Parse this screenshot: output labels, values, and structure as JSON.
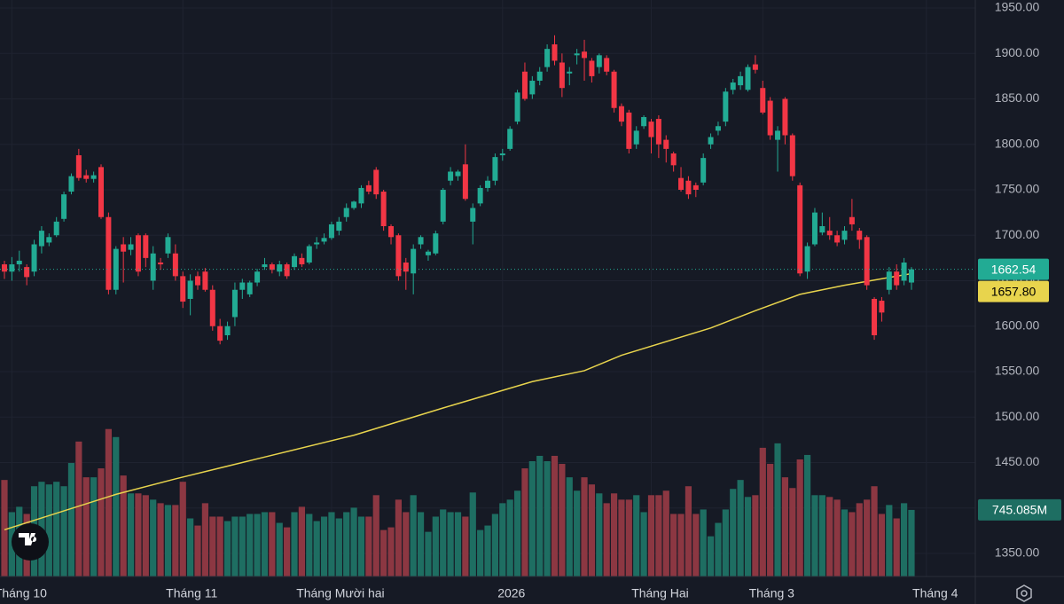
{
  "chart_data": {
    "type": "candlestick",
    "categories": [
      null,
      "Tháng 10",
      null,
      null,
      null,
      null,
      null,
      null,
      null,
      null,
      null,
      null,
      null,
      null,
      null,
      null,
      null,
      null,
      null,
      null,
      null,
      null,
      null,
      null,
      "Tháng 11",
      null,
      null,
      null,
      null,
      null,
      null,
      null,
      null,
      null,
      null,
      null,
      null,
      null,
      null,
      null,
      null,
      null,
      null,
      null,
      "Tháng Mười hai",
      null,
      null,
      null,
      null,
      null,
      null,
      null,
      null,
      null,
      null,
      null,
      null,
      null,
      null,
      null,
      null,
      null,
      null,
      null,
      null,
      null,
      null,
      "2026",
      null,
      null,
      null,
      null,
      null,
      null,
      null,
      null,
      null,
      null,
      null,
      null,
      null,
      null,
      null,
      null,
      null,
      null,
      null,
      "Tháng Hai",
      null,
      null,
      null,
      null,
      null,
      null,
      null,
      null,
      null,
      null,
      null,
      null,
      null,
      null,
      "Tháng 3",
      null,
      null,
      null,
      null,
      null,
      null,
      null,
      null,
      null,
      null,
      null,
      null,
      null,
      null,
      null,
      null,
      null,
      null,
      null,
      null,
      null,
      "Tháng 4"
    ],
    "open": [
      1668,
      1660,
      1668,
      1665,
      1660,
      1688,
      1692,
      1700,
      1718,
      1748,
      1788,
      1766,
      1762,
      1775,
      1720,
      1640,
      1690,
      1684,
      1700,
      1700,
      1650,
      1670,
      1680,
      1680,
      1655,
      1630,
      1655,
      1660,
      1640,
      1600,
      1590,
      1610,
      1640,
      1635,
      1648,
      1665,
      1668,
      1660,
      1668,
      1665,
      1675,
      1670,
      1690,
      1693,
      1697,
      1705,
      1720,
      1730,
      1735,
      1755,
      1772,
      1748,
      1710,
      1700,
      1670,
      1658,
      1690,
      1678,
      1680,
      1715,
      1760,
      1765,
      1778,
      1715,
      1735,
      1752,
      1760,
      1788,
      1795,
      1825,
      1880,
      1855,
      1870,
      1885,
      1910,
      1890,
      1878,
      1898,
      1902,
      1892,
      1885,
      1895,
      1880,
      1842,
      1835,
      1800,
      1820,
      1825,
      1828,
      1805,
      1790,
      1763,
      1760,
      1755,
      1758,
      1800,
      1815,
      1825,
      1860,
      1865,
      1860,
      1888,
      1862,
      1848,
      1805,
      1850,
      1810,
      1755,
      1660,
      1690,
      1703,
      1705,
      1700,
      1695,
      1720,
      1705,
      1698,
      1630,
      1628,
      1640,
      1660,
      1650,
      1648,
      null,
      null
    ],
    "high": [
      1672,
      1676,
      1683,
      1668,
      1695,
      1710,
      1702,
      1720,
      1748,
      1768,
      1795,
      1772,
      1770,
      1778,
      1725,
      1688,
      1698,
      1698,
      1702,
      1702,
      1688,
      1675,
      1702,
      1690,
      1660,
      1657,
      1660,
      1664,
      1645,
      1608,
      1605,
      1648,
      1652,
      1650,
      1663,
      1675,
      1670,
      1672,
      1670,
      1680,
      1680,
      1690,
      1698,
      1702,
      1715,
      1720,
      1735,
      1738,
      1755,
      1760,
      1775,
      1750,
      1712,
      1702,
      1675,
      1690,
      1700,
      1684,
      1705,
      1752,
      1775,
      1772,
      1800,
      1735,
      1755,
      1765,
      1790,
      1795,
      1820,
      1860,
      1890,
      1875,
      1885,
      1910,
      1920,
      1900,
      1885,
      1905,
      1915,
      1895,
      1900,
      1898,
      1882,
      1845,
      1838,
      1820,
      1832,
      1828,
      1832,
      1810,
      1792,
      1775,
      1765,
      1758,
      1790,
      1812,
      1825,
      1862,
      1872,
      1880,
      1888,
      1898,
      1870,
      1852,
      1820,
      1852,
      1812,
      1758,
      1692,
      1730,
      1725,
      1720,
      1705,
      1710,
      1740,
      1708,
      1700,
      1632,
      1632,
      1665,
      1668,
      1675,
      1665,
      null,
      null
    ],
    "low": [
      1652,
      1650,
      1660,
      1645,
      1655,
      1680,
      1688,
      1698,
      1715,
      1745,
      1760,
      1758,
      1758,
      1718,
      1635,
      1635,
      1648,
      1678,
      1655,
      1665,
      1640,
      1662,
      1675,
      1650,
      1620,
      1612,
      1640,
      1638,
      1595,
      1580,
      1585,
      1600,
      1630,
      1632,
      1644,
      1662,
      1658,
      1655,
      1652,
      1662,
      1665,
      1668,
      1685,
      1690,
      1695,
      1700,
      1715,
      1728,
      1730,
      1745,
      1740,
      1705,
      1690,
      1650,
      1640,
      1635,
      1685,
      1672,
      1678,
      1712,
      1755,
      1760,
      1738,
      1690,
      1732,
      1748,
      1755,
      1782,
      1793,
      1822,
      1848,
      1850,
      1865,
      1880,
      1887,
      1852,
      1865,
      1888,
      1870,
      1868,
      1878,
      1876,
      1835,
      1820,
      1790,
      1795,
      1817,
      1790,
      1785,
      1780,
      1770,
      1748,
      1740,
      1742,
      1755,
      1795,
      1810,
      1820,
      1855,
      1860,
      1858,
      1878,
      1833,
      1805,
      1770,
      1800,
      1760,
      1655,
      1652,
      1688,
      1700,
      1695,
      1688,
      1690,
      1705,
      1685,
      1640,
      1585,
      1605,
      1635,
      1640,
      1645,
      1640,
      null,
      null
    ],
    "close": [
      1660,
      1668,
      1672,
      1654,
      1690,
      1705,
      1698,
      1715,
      1745,
      1765,
      1763,
      1762,
      1766,
      1720,
      1640,
      1685,
      1682,
      1690,
      1660,
      1675,
      1680,
      1668,
      1698,
      1655,
      1627,
      1650,
      1645,
      1640,
      1600,
      1584,
      1600,
      1640,
      1648,
      1648,
      1660,
      1668,
      1662,
      1668,
      1655,
      1677,
      1668,
      1688,
      1692,
      1697,
      1712,
      1715,
      1730,
      1737,
      1752,
      1748,
      1745,
      1710,
      1698,
      1655,
      1660,
      1685,
      1698,
      1682,
      1702,
      1750,
      1770,
      1770,
      1740,
      1730,
      1752,
      1760,
      1786,
      1790,
      1817,
      1857,
      1850,
      1870,
      1880,
      1905,
      1892,
      1862,
      1880,
      1900,
      1895,
      1875,
      1898,
      1880,
      1840,
      1825,
      1795,
      1815,
      1830,
      1808,
      1800,
      1795,
      1777,
      1750,
      1745,
      1750,
      1785,
      1808,
      1820,
      1858,
      1868,
      1875,
      1885,
      1882,
      1835,
      1810,
      1815,
      1810,
      1765,
      1658,
      1688,
      1725,
      1710,
      1700,
      1692,
      1705,
      1712,
      1695,
      1645,
      1590,
      1615,
      1660,
      1645,
      1670,
      1662.54,
      null,
      null
    ],
    "volume": [
      1080,
      720,
      780,
      700,
      1010,
      1060,
      1030,
      1060,
      1010,
      1270,
      1510,
      1110,
      1110,
      1210,
      1650,
      1560,
      1130,
      930,
      930,
      910,
      860,
      820,
      800,
      800,
      1060,
      650,
      570,
      820,
      670,
      670,
      620,
      670,
      670,
      700,
      700,
      720,
      720,
      600,
      550,
      720,
      780,
      700,
      620,
      670,
      720,
      650,
      720,
      770,
      670,
      670,
      910,
      520,
      550,
      860,
      720,
      910,
      720,
      500,
      670,
      750,
      720,
      720,
      670,
      940,
      520,
      570,
      700,
      820,
      860,
      960,
      1210,
      1290,
      1350,
      1290,
      1350,
      1260,
      1110,
      960,
      1110,
      1030,
      930,
      820,
      930,
      860,
      860,
      910,
      720,
      910,
      910,
      960,
      700,
      700,
      1010,
      700,
      750,
      450,
      600,
      750,
      980,
      1080,
      890,
      910,
      1440,
      1260,
      1490,
      1110,
      990,
      1310,
      1360,
      910,
      910,
      890,
      860,
      750,
      720,
      820,
      860,
      1010,
      700,
      800,
      650,
      820,
      745.085,
      null,
      null
    ],
    "last_price_label": "1662.54",
    "volume_last_label": "745.085M",
    "ma": {
      "color": "#e8d44d",
      "x": [
        0,
        15,
        23,
        35,
        47,
        59,
        71,
        78,
        83,
        95,
        101,
        107,
        113,
        122
      ],
      "values": [
        1376,
        1415,
        1432,
        1456,
        1480,
        1510,
        1539,
        1551,
        1568,
        1598,
        1617,
        1635,
        1645,
        1657.8
      ],
      "last_label": "1657.80"
    },
    "up_color": "#22ab94",
    "down_color": "#f23645",
    "up_volume_color": "#1e6e62",
    "down_volume_color": "#8c3742",
    "ylim": [
      1324.6,
      1958.8
    ],
    "yticks": [
      {
        "value": 1350,
        "label": "1350.00"
      },
      {
        "value": 1400,
        "label": "1400.00"
      },
      {
        "value": 1450,
        "label": "1450.00"
      },
      {
        "value": 1500,
        "label": "1500.00"
      },
      {
        "value": 1550,
        "label": "1550.00"
      },
      {
        "value": 1600,
        "label": "1600.00"
      },
      {
        "value": 1650,
        "label": "1650.00"
      },
      {
        "value": 1700,
        "label": "1700.00"
      },
      {
        "value": 1750,
        "label": "1750.00"
      },
      {
        "value": 1800,
        "label": "1800.00"
      },
      {
        "value": 1850,
        "label": "1850.00"
      },
      {
        "value": 1900,
        "label": "1900.00"
      },
      {
        "value": 1950,
        "label": "1950.00"
      }
    ],
    "volume_lim": [
      0,
      6450
    ],
    "grid": true
  }
}
